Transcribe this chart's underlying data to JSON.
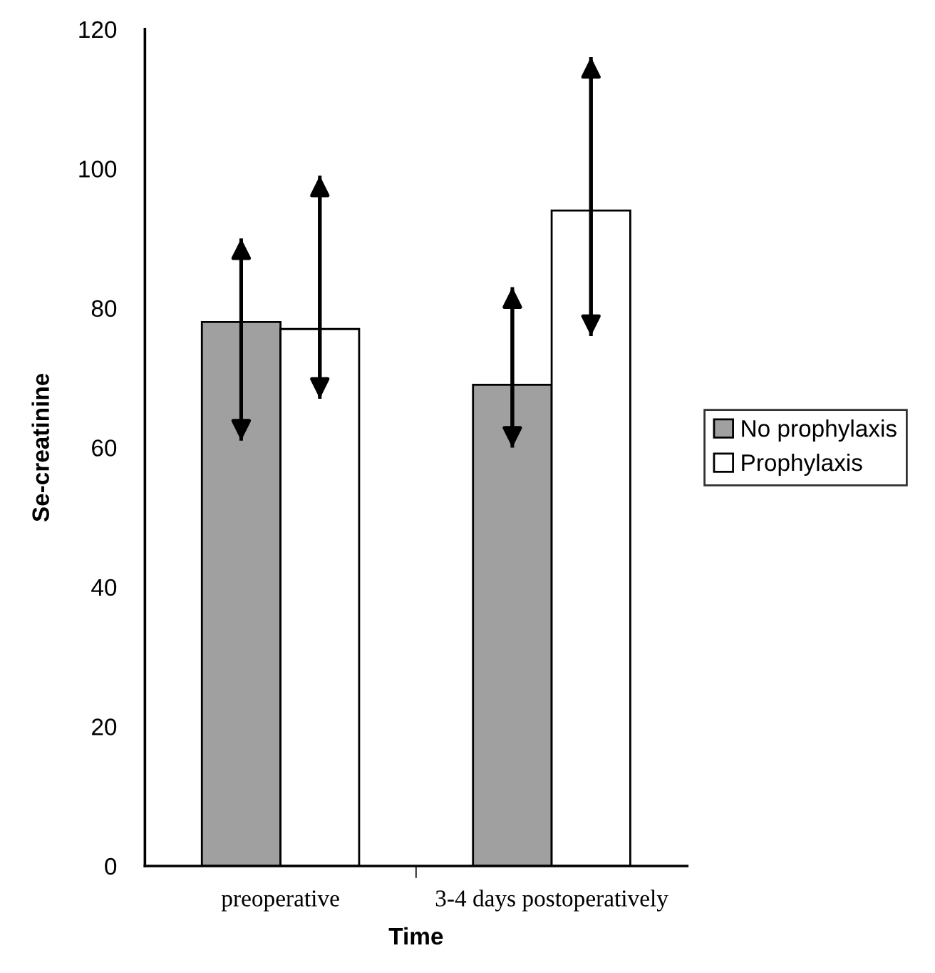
{
  "chart_data": {
    "type": "bar",
    "xlabel": "Time",
    "ylabel": "Se-creatinine",
    "categories": [
      "preoperative",
      "3-4 days postoperatively"
    ],
    "series": [
      {
        "name": "No prophylaxis",
        "color": "#a0a0a0",
        "values": [
          78,
          69
        ],
        "errors": [
          [
            61,
            90
          ],
          [
            60,
            83
          ]
        ]
      },
      {
        "name": "Prophylaxis",
        "color": "#ffffff",
        "values": [
          77,
          94
        ],
        "errors": [
          [
            67,
            99
          ],
          [
            76,
            116
          ]
        ]
      }
    ],
    "ylim": [
      0,
      120
    ],
    "yticks": [
      0,
      20,
      40,
      60,
      80,
      100,
      120
    ],
    "grid": false,
    "legend": "right"
  }
}
